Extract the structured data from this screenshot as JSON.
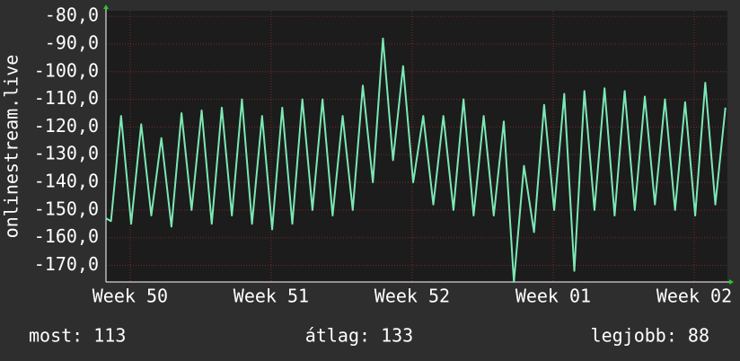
{
  "chart_data": {
    "type": "line",
    "y_label": "onlinestream.live",
    "x": [
      0,
      0.25,
      0.75,
      1.25,
      1.75,
      2.25,
      2.75,
      3.25,
      3.75,
      4.25,
      4.75,
      5.25,
      5.75,
      6.25,
      6.75,
      7.25,
      7.75,
      8.25,
      8.75,
      9.25,
      9.75,
      10.25,
      10.75,
      11.25,
      11.75,
      12.25,
      12.75,
      13.25,
      13.75,
      14.25,
      14.75,
      15.25,
      15.75,
      16.25,
      16.75,
      17.25,
      17.75,
      18.25,
      18.75,
      19.25,
      19.75,
      20.25,
      20.75,
      21.25,
      21.75,
      22.25,
      22.75,
      23.25,
      23.75,
      24.25,
      24.75,
      25.25,
      25.75,
      26.25,
      26.75,
      27.25,
      27.75,
      28.25,
      28.75,
      29.25,
      29.75,
      30.25,
      30.75
    ],
    "series": [
      {
        "name": "onlinestream.live",
        "color": "#7be8b4",
        "values": [
          -153,
          -154,
          -116,
          -155,
          -119,
          -152,
          -124,
          -156,
          -115,
          -150,
          -114,
          -155,
          -113,
          -152,
          -110,
          -155,
          -116,
          -157,
          -113,
          -155,
          -110,
          -150,
          -110,
          -152,
          -116,
          -150,
          -105,
          -140,
          -88,
          -132,
          -98,
          -140,
          -116,
          -148,
          -116,
          -150,
          -110,
          -152,
          -116,
          -152,
          -118,
          -176,
          -134,
          -158,
          -112,
          -150,
          -108,
          -172,
          -107,
          -150,
          -106,
          -152,
          -107,
          -150,
          -109,
          -148,
          -110,
          -150,
          -111,
          -152,
          -104,
          -148,
          -113
        ]
      }
    ],
    "xlim": [
      0,
      30.85
    ],
    "xticks": [
      {
        "value": 1.2,
        "label": "Week 50"
      },
      {
        "value": 8.2,
        "label": "Week 51"
      },
      {
        "value": 15.2,
        "label": "Week 52"
      },
      {
        "value": 22.2,
        "label": "Week 01"
      },
      {
        "value": 29.2,
        "label": "Week 02"
      }
    ],
    "ylim": [
      -176,
      -78
    ],
    "yticks": [
      {
        "value": -80,
        "label": "-80,0"
      },
      {
        "value": -90,
        "label": "-90,0"
      },
      {
        "value": -100,
        "label": "-100,0"
      },
      {
        "value": -110,
        "label": "-110,0"
      },
      {
        "value": -120,
        "label": "-120,0"
      },
      {
        "value": -130,
        "label": "-130,0"
      },
      {
        "value": -140,
        "label": "-140,0"
      },
      {
        "value": -150,
        "label": "-150,0"
      },
      {
        "value": -160,
        "label": "-160,0"
      },
      {
        "value": -170,
        "label": "-170,0"
      }
    ],
    "grid": true,
    "footer": [
      "most: 113",
      "átlag: 133",
      "legjobb: 88"
    ]
  }
}
